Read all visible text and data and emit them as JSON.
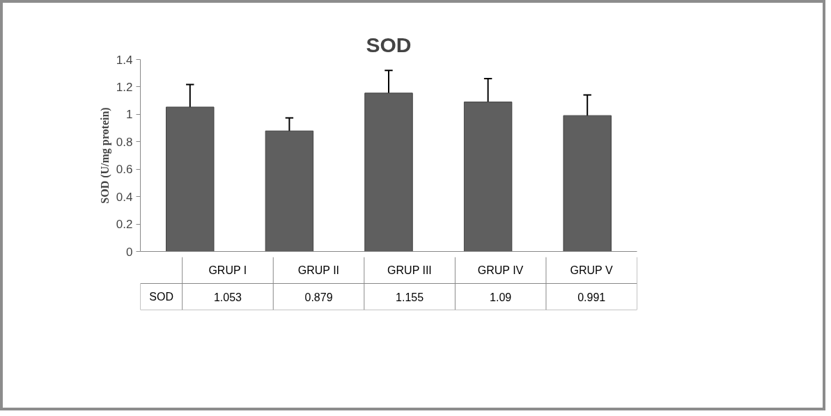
{
  "chart_data": {
    "type": "bar",
    "title": "SOD",
    "ylabel": "SOD (U/mg protein)",
    "categories": [
      "GRUP I",
      "GRUP II",
      "GRUP III",
      "GRUP IV",
      "GRUP V"
    ],
    "series": [
      {
        "name": "SOD",
        "color": "#5f5f5f",
        "values": [
          1.053,
          0.879,
          1.155,
          1.09,
          0.991
        ],
        "errors": [
          0.165,
          0.095,
          0.165,
          0.17,
          0.15
        ]
      }
    ],
    "ylim": [
      0,
      1.4
    ],
    "yticks": [
      0,
      0.2,
      0.4,
      0.6,
      0.8,
      1,
      1.2,
      1.4
    ],
    "grid": false,
    "legend": false,
    "data_labels": true
  }
}
